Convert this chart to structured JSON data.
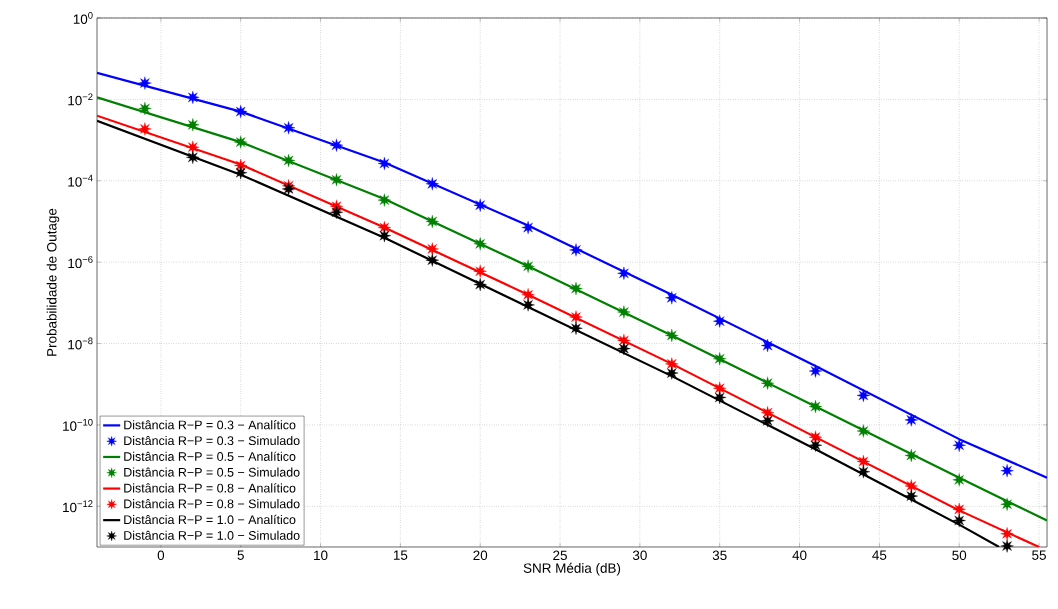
{
  "chart_data": {
    "type": "line",
    "xlabel": "SNR Média (dB)",
    "ylabel": "Probabilidade de Outage",
    "log": "y",
    "grid": true,
    "legend": "bottom left",
    "xlim": [
      -4,
      55.5
    ],
    "xticks": [
      0,
      5,
      10,
      15,
      20,
      25,
      30,
      35,
      40,
      45,
      50,
      55
    ],
    "ylim": [
      1e-13,
      1
    ],
    "yticks": [
      {
        "value": 1,
        "label": "10$^{0}$"
      },
      {
        "value": 0.01,
        "label": "10$^{−2}$"
      },
      {
        "value": 0.0001,
        "label": "10$^{−4}$"
      },
      {
        "value": 1e-06,
        "label": "10$^{−6}$"
      },
      {
        "value": 1e-08,
        "label": "10$^{−8}$"
      },
      {
        "value": 1e-10,
        "label": "10$^{−10}$"
      },
      {
        "value": 1e-12,
        "label": "10$^{−12}$"
      }
    ],
    "series": [
      {
        "name": "Distância R−P = 0.3 − Analítico",
        "color": "#0000ff",
        "marker": "none",
        "line_style": "solid",
        "x": [
          -4,
          5,
          14,
          23,
          32,
          41,
          50,
          55.5
        ],
        "values": [
          0.0447,
          0.00501,
          0.000282,
          7.94e-06,
          1.58e-07,
          2.82e-09,
          4.47e-11,
          5.01e-12
        ]
      },
      {
        "type": "scatter",
        "name": "Distância R−P = 0.3 − Simulado",
        "color": "#0000ff",
        "marker": "star",
        "x": [
          -1,
          2,
          5,
          8,
          11,
          14,
          17,
          20,
          23,
          26,
          29,
          32,
          35,
          38,
          41,
          44,
          47,
          50,
          53
        ],
        "values": [
          0.0251,
          0.0112,
          0.00501,
          0.002,
          0.00075,
          0.000266,
          8.41e-05,
          2.51e-05,
          7.08e-06,
          2e-06,
          5.31e-07,
          1.33e-07,
          3.55e-08,
          8.91e-09,
          2.11e-09,
          5.31e-10,
          1.33e-10,
          3.16e-11,
          7.5e-12
        ]
      },
      {
        "name": "Distância R−P = 0.5 − Analítico",
        "color": "#008000",
        "marker": "none",
        "line_style": "solid",
        "x": [
          -4,
          5,
          14,
          23,
          32,
          41,
          50,
          55.5
        ],
        "values": [
          0.0112,
          0.000891,
          3.55e-05,
          7.94e-07,
          1.58e-08,
          2.82e-10,
          5.01e-12,
          4.47e-13
        ]
      },
      {
        "type": "scatter",
        "name": "Distância R−P = 0.5 − Simulado",
        "color": "#008000",
        "marker": "star",
        "x": [
          -1,
          2,
          5,
          8,
          11,
          14,
          17,
          20,
          23,
          26,
          29,
          32,
          35,
          38,
          41,
          44,
          47,
          50,
          53
        ],
        "values": [
          0.00596,
          0.00237,
          0.000891,
          0.000316,
          0.000106,
          3.35e-05,
          1e-05,
          2.82e-06,
          7.94e-07,
          2.24e-07,
          5.96e-08,
          1.58e-08,
          4.22e-09,
          1.06e-09,
          2.82e-10,
          7.08e-11,
          1.78e-11,
          4.47e-12,
          1.12e-12
        ]
      },
      {
        "name": "Distância R−P = 0.8 − Analítico",
        "color": "#ff0000",
        "marker": "none",
        "line_style": "solid",
        "x": [
          -4,
          5,
          14,
          23,
          32,
          41,
          50,
          55
        ],
        "values": [
          0.00398,
          0.000251,
          7.08e-06,
          1.58e-07,
          3.16e-09,
          5.01e-11,
          7.94e-13,
          1e-13
        ]
      },
      {
        "type": "scatter",
        "name": "Distância R−P = 0.8 − Simulado",
        "color": "#ff0000",
        "marker": "star",
        "x": [
          -1,
          2,
          5,
          8,
          11,
          14,
          17,
          20,
          23,
          26,
          29,
          32,
          35,
          38,
          41,
          44,
          47,
          50,
          53
        ],
        "values": [
          0.00188,
          0.000668,
          0.000237,
          7.5e-05,
          2.37e-05,
          7.08e-06,
          2.11e-06,
          5.96e-07,
          1.58e-07,
          4.47e-08,
          1.19e-08,
          3.16e-09,
          7.94e-10,
          2e-10,
          5.01e-11,
          1.26e-11,
          3.16e-12,
          8.41e-13,
          2.11e-13
        ]
      },
      {
        "name": "Distância R−P = 1.0 − Analítico",
        "color": "#000000",
        "marker": "none",
        "line_style": "solid",
        "x": [
          -4,
          5,
          14,
          23,
          32,
          41,
          50,
          52.5
        ],
        "values": [
          0.00299,
          0.000141,
          3.98e-06,
          7.94e-08,
          1.58e-09,
          2.51e-11,
          3.55e-13,
          1e-13
        ]
      },
      {
        "type": "scatter",
        "name": "Distância R−P = 1.0 − Simulado",
        "color": "#000000",
        "marker": "star",
        "x": [
          2,
          5,
          8,
          11,
          14,
          17,
          20,
          23,
          26,
          29,
          32,
          35,
          38,
          41,
          44,
          47,
          50,
          53
        ],
        "values": [
          0.000376,
          0.000158,
          6.31e-05,
          1.68e-05,
          4.47e-06,
          1.12e-06,
          2.82e-07,
          8.91e-08,
          2.37e-08,
          7.5e-09,
          1.88e-09,
          4.73e-10,
          1.26e-10,
          3.16e-11,
          7.08e-12,
          1.78e-12,
          4.47e-13,
          1.06e-13
        ]
      }
    ]
  }
}
